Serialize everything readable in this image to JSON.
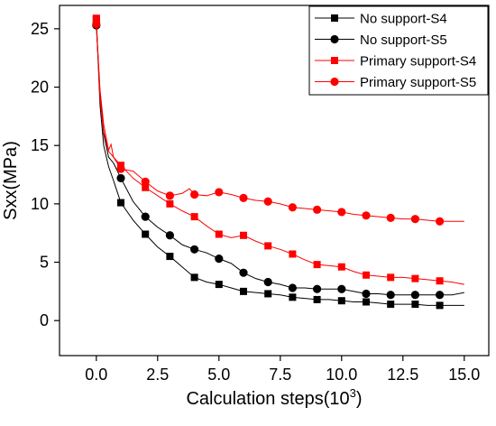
{
  "chart_data": {
    "type": "line",
    "title": "",
    "xlabel": "Calculation steps(10",
    "xlabel_sup": "3",
    "xlabel_suffix": ")",
    "ylabel": "Sxx(MPa)",
    "xlim": [
      -1.5,
      16.0
    ],
    "ylim": [
      -3,
      27
    ],
    "x_ticks": [
      0.0,
      2.5,
      5.0,
      7.5,
      10.0,
      12.5,
      15.0
    ],
    "x_tick_labels": [
      "0.0",
      "2.5",
      "5.0",
      "7.5",
      "10.0",
      "12.5",
      "15.0"
    ],
    "y_ticks": [
      0,
      5,
      10,
      15,
      20,
      25
    ],
    "y_tick_labels": [
      "0",
      "5",
      "10",
      "15",
      "20",
      "25"
    ],
    "legend_position": "top-right",
    "series": [
      {
        "name": "No support-S4",
        "color": "#000000",
        "marker": "square",
        "markers_x": [
          0,
          1,
          2,
          3,
          4,
          5,
          6,
          7,
          8,
          9,
          10,
          11,
          12,
          13,
          14
        ],
        "markers_y": [
          25.8,
          10.1,
          7.4,
          5.5,
          3.7,
          3.1,
          2.5,
          2.3,
          2.0,
          1.8,
          1.7,
          1.6,
          1.4,
          1.4,
          1.3
        ],
        "line_x": [
          0,
          0.15,
          0.3,
          0.5,
          0.7,
          1.0,
          1.5,
          2.0,
          2.5,
          3.0,
          3.5,
          4.0,
          4.5,
          5.0,
          5.5,
          6.0,
          6.5,
          7.0,
          7.5,
          8.0,
          8.5,
          9.0,
          9.5,
          10.0,
          10.5,
          11.0,
          11.5,
          12.0,
          12.5,
          13.0,
          13.5,
          14.0,
          14.5,
          15.0
        ],
        "line_y": [
          25.8,
          18.5,
          15.0,
          13.2,
          12.0,
          10.1,
          8.6,
          7.4,
          6.3,
          5.5,
          4.6,
          3.7,
          3.3,
          3.1,
          2.8,
          2.5,
          2.4,
          2.3,
          2.2,
          2.0,
          1.9,
          1.8,
          1.8,
          1.7,
          1.6,
          1.6,
          1.5,
          1.4,
          1.4,
          1.4,
          1.3,
          1.3,
          1.3,
          1.3
        ]
      },
      {
        "name": "No support-S5",
        "color": "#000000",
        "marker": "circle",
        "markers_x": [
          0,
          1,
          2,
          3,
          4,
          5,
          6,
          7,
          8,
          9,
          10,
          11,
          12,
          13,
          14
        ],
        "markers_y": [
          25.3,
          12.2,
          8.9,
          7.3,
          6.1,
          5.3,
          4.1,
          3.3,
          2.8,
          2.7,
          2.7,
          2.3,
          2.2,
          2.2,
          2.2
        ],
        "line_x": [
          0,
          0.15,
          0.3,
          0.5,
          0.7,
          1.0,
          1.5,
          2.0,
          2.5,
          3.0,
          3.5,
          4.0,
          4.5,
          5.0,
          5.5,
          6.0,
          6.5,
          7.0,
          7.5,
          8.0,
          8.5,
          9.0,
          9.5,
          10.0,
          10.5,
          11.0,
          11.5,
          12.0,
          12.5,
          13.0,
          13.5,
          14.0,
          14.5,
          15.0
        ],
        "line_y": [
          25.3,
          19.5,
          16.0,
          14.0,
          13.5,
          12.2,
          10.2,
          8.9,
          8.0,
          7.3,
          6.5,
          6.1,
          5.8,
          5.3,
          4.9,
          4.1,
          3.6,
          3.3,
          3.1,
          2.8,
          2.8,
          2.7,
          2.7,
          2.7,
          2.5,
          2.3,
          2.3,
          2.2,
          2.2,
          2.2,
          2.2,
          2.2,
          2.2,
          2.4
        ]
      },
      {
        "name": "Primary support-S4",
        "color": "#ff0000",
        "marker": "square",
        "markers_x": [
          0,
          1,
          2,
          3,
          4,
          5,
          6,
          7,
          8,
          9,
          10,
          11,
          12,
          13,
          14
        ],
        "markers_y": [
          25.9,
          13.3,
          11.4,
          10.0,
          8.9,
          7.4,
          7.3,
          6.4,
          5.7,
          4.8,
          4.6,
          3.9,
          3.7,
          3.6,
          3.4
        ],
        "line_x": [
          0,
          0.15,
          0.3,
          0.5,
          0.7,
          1.0,
          1.5,
          2.0,
          2.5,
          3.0,
          3.5,
          4.0,
          4.5,
          5.0,
          5.5,
          6.0,
          6.5,
          7.0,
          7.5,
          8.0,
          8.5,
          9.0,
          9.5,
          10.0,
          10.5,
          11.0,
          11.5,
          12.0,
          12.5,
          13.0,
          13.5,
          14.0,
          14.5,
          15.0
        ],
        "line_y": [
          25.9,
          19.0,
          16.2,
          14.5,
          14.0,
          13.3,
          12.2,
          11.4,
          10.7,
          10.0,
          9.4,
          8.9,
          8.1,
          7.4,
          7.1,
          7.3,
          6.8,
          6.4,
          6.1,
          5.7,
          5.2,
          4.8,
          4.7,
          4.6,
          4.2,
          3.9,
          3.8,
          3.7,
          3.7,
          3.6,
          3.5,
          3.4,
          3.3,
          3.1
        ]
      },
      {
        "name": "Primary support-S5",
        "color": "#ff0000",
        "marker": "circle",
        "markers_x": [
          0,
          1,
          2,
          3,
          4,
          5,
          6,
          7,
          8,
          9,
          10,
          11,
          12,
          13,
          14
        ],
        "markers_y": [
          25.4,
          13.0,
          11.9,
          10.7,
          10.8,
          11.0,
          10.5,
          10.2,
          9.7,
          9.5,
          9.3,
          9.0,
          8.8,
          8.7,
          8.5
        ],
        "line_x": [
          0,
          0.15,
          0.3,
          0.5,
          0.6,
          0.7,
          1.0,
          1.5,
          2.0,
          2.5,
          3.0,
          3.5,
          3.8,
          4.0,
          4.5,
          5.0,
          5.5,
          6.0,
          6.5,
          7.0,
          7.5,
          8.0,
          8.5,
          9.0,
          9.5,
          10.0,
          10.5,
          11.0,
          11.5,
          12.0,
          12.5,
          13.0,
          13.5,
          14.0,
          14.5,
          15.0
        ],
        "line_y": [
          25.4,
          19.8,
          16.8,
          14.6,
          15.1,
          14.0,
          13.0,
          12.8,
          11.9,
          11.1,
          10.7,
          10.9,
          11.3,
          10.8,
          10.7,
          11.0,
          10.8,
          10.5,
          10.3,
          10.2,
          10.0,
          9.7,
          9.6,
          9.5,
          9.4,
          9.3,
          9.1,
          9.0,
          8.9,
          8.8,
          8.7,
          8.7,
          8.6,
          8.5,
          8.5,
          8.5
        ]
      }
    ]
  }
}
